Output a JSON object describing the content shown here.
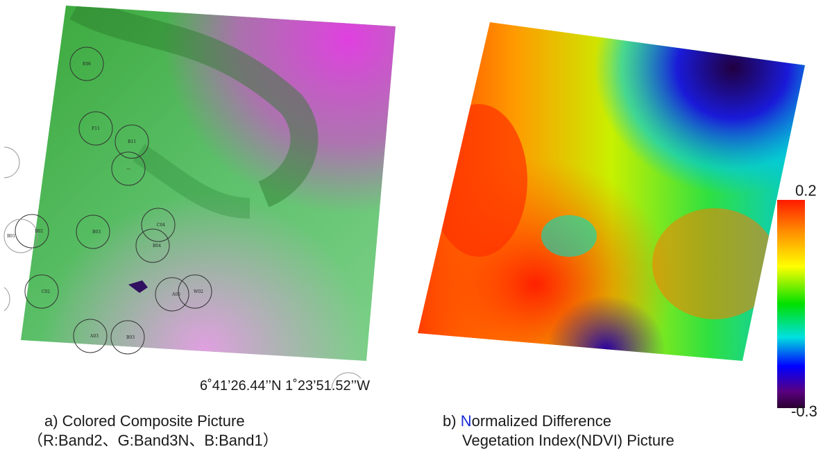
{
  "panel_a": {
    "markers": [
      {
        "label": "E06"
      },
      {
        "label": "F11"
      },
      {
        "label": "B11"
      },
      {
        "label": "—"
      },
      {
        "label": "C04"
      },
      {
        "label": "B02"
      },
      {
        "label": "B01"
      },
      {
        "label": "B03"
      },
      {
        "label": "B04"
      },
      {
        "label": "C02"
      },
      {
        "label": "A05"
      },
      {
        "label": "W02"
      },
      {
        "label": "A03"
      },
      {
        "label": "B03"
      }
    ],
    "caption_line1": "a) Colored Composite Picture",
    "caption_line2": "（R:Band2、G:Band3N、B:Band1）"
  },
  "coordinates": "6˚41’26.44’’N  1˚23’51.52’’W",
  "panel_b": {
    "caption_first_letter": "N",
    "caption_line1_rest": "ormalized Difference",
    "caption_prefix": "b) ",
    "caption_line2": "Vegetation Index(NDVI) Picture",
    "first_letter_color": "#1a2bd6"
  },
  "colorbar": {
    "max_label": "0.2",
    "min_label": "-0.3",
    "colors": [
      "#ff1a00",
      "#ff8c00",
      "#ffff00",
      "#00e000",
      "#00e0e0",
      "#0000ff",
      "#5a0080",
      "#2a0030"
    ]
  }
}
